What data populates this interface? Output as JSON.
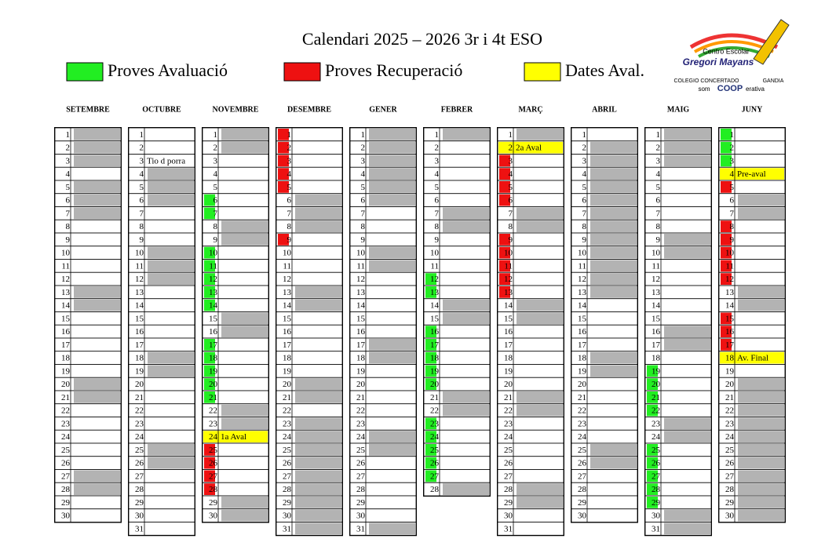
{
  "header": {
    "title": "Calendari 2025 – 2026 3r i 4t ESO",
    "legend": [
      {
        "label": "Proves Avaluació",
        "color": "#22ee22"
      },
      {
        "label": "Proves Recuperació",
        "color": "#ee1111"
      },
      {
        "label": "Dates Aval.",
        "color": "#ffff00"
      }
    ],
    "logo": {
      "line1": "Centro Escolar",
      "line2": "Gregori Mayans",
      "line3": "COLEGIO CONCERTADO",
      "city": "GANDIA",
      "som": "som",
      "coop": "COOP",
      "erativa": "erativa"
    }
  },
  "status_colors": {
    "w": "#ffffff",
    "g": "#b3b3b3",
    "G": "#22ee22",
    "R": "#ee1111",
    "Y": "#ffff00"
  },
  "months": [
    {
      "name": "SETEMBRE",
      "days": [
        1,
        2,
        3,
        4,
        5,
        6,
        7,
        8,
        9,
        10,
        11,
        12,
        13,
        14,
        15,
        16,
        17,
        18,
        19,
        20,
        21,
        22,
        23,
        24,
        25,
        26,
        27,
        28,
        29,
        30
      ],
      "status": "gggwgggwwwwwggwwwwwggwwwwwggww",
      "notes": {}
    },
    {
      "name": "OCTUBRE",
      "days": [
        1,
        2,
        3,
        4,
        5,
        6,
        7,
        8,
        9,
        10,
        11,
        12,
        13,
        14,
        15,
        16,
        17,
        18,
        19,
        20,
        21,
        22,
        23,
        24,
        25,
        26,
        27,
        28,
        29,
        30,
        31
      ],
      "status": "wwwgggwwwgggwwwwwggwwwwwggwwwww",
      "notes": {
        "3": "Tio d porra"
      }
    },
    {
      "name": "NOVEMBRE",
      "days": [
        1,
        2,
        3,
        4,
        5,
        6,
        7,
        8,
        9,
        10,
        11,
        12,
        13,
        14,
        15,
        16,
        17,
        18,
        19,
        20,
        21,
        22,
        23,
        24,
        25,
        26,
        27,
        28,
        29,
        30
      ],
      "status": "ggwwwGGggGGGGGggGGGGGggYRRRRgg",
      "notes": {
        "24": "1a Aval"
      }
    },
    {
      "name": "DESEMBRE",
      "days": [
        1,
        2,
        3,
        4,
        5,
        6,
        7,
        8,
        9,
        10,
        11,
        12,
        13,
        14,
        15,
        16,
        17,
        18,
        19,
        20,
        21,
        22,
        23,
        24,
        25,
        26,
        27,
        28,
        29,
        30,
        31
      ],
      "status": "RRRRRgggRwwwggwwwwwggwggggggggg",
      "notes": {}
    },
    {
      "name": "GENER",
      "days": [
        1,
        2,
        3,
        4,
        5,
        6,
        7,
        8,
        9,
        10,
        11,
        12,
        13,
        14,
        15,
        16,
        17,
        18,
        19,
        20,
        21,
        22,
        23,
        24,
        25,
        26,
        27,
        28,
        29,
        30,
        31
      ],
      "status": "ggggggwwwggwwwwwggwwwwwggwwwwwg",
      "notes": {}
    },
    {
      "name": "FEBRER",
      "days": [
        1,
        2,
        3,
        4,
        5,
        6,
        7,
        8,
        9,
        10,
        11,
        12,
        13,
        14,
        15,
        16,
        17,
        18,
        19,
        20,
        21,
        22,
        23,
        24,
        25,
        26,
        27,
        28
      ],
      "status": "gwwwwwggwwwGGggGGGGGggGGGGGg",
      "notes": {}
    },
    {
      "name": "MARÇ",
      "days": [
        1,
        2,
        3,
        4,
        5,
        6,
        7,
        8,
        9,
        10,
        11,
        12,
        13,
        14,
        15,
        16,
        17,
        18,
        19,
        20,
        21,
        22,
        23,
        24,
        25,
        26,
        27,
        28,
        29,
        30,
        31
      ],
      "status": "gYRRRRggRRRRRggwwwwwggwwwwwggww",
      "notes": {
        "2": "2a Aval"
      }
    },
    {
      "name": "ABRIL",
      "days": [
        1,
        2,
        3,
        4,
        5,
        6,
        7,
        8,
        9,
        10,
        11,
        12,
        13,
        14,
        15,
        16,
        17,
        18,
        19,
        20,
        21,
        22,
        23,
        24,
        25,
        26,
        27,
        28,
        29,
        30
      ],
      "status": "wggggggggggggwwwwggwwwwwggwwww",
      "notes": {}
    },
    {
      "name": "MAIG",
      "days": [
        1,
        2,
        3,
        4,
        5,
        6,
        7,
        8,
        9,
        10,
        11,
        12,
        13,
        14,
        15,
        16,
        17,
        18,
        19,
        20,
        21,
        22,
        23,
        24,
        25,
        26,
        27,
        28,
        29,
        30,
        31
      ],
      "status": "gggwwwwwggwwwwwggwGGGGggGGGGGgg",
      "notes": {}
    },
    {
      "name": "JUNY",
      "days": [
        1,
        2,
        3,
        4,
        5,
        6,
        7,
        8,
        9,
        10,
        11,
        12,
        13,
        14,
        15,
        16,
        17,
        18,
        19,
        20,
        21,
        22,
        23,
        24,
        25,
        26,
        27,
        28,
        29,
        30
      ],
      "status": "GGGYRggRRRRRggRRRYwggggggggggg",
      "notes": {
        "4": "Pre-aval",
        "18": "Av. Final"
      }
    }
  ]
}
